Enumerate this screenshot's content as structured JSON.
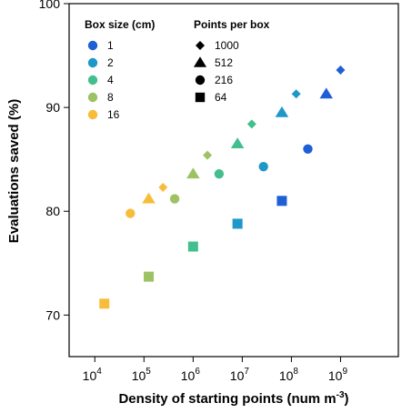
{
  "chart_data": {
    "type": "scatter",
    "xlabel": "Density of starting points (num m",
    "xlabel_superscript": "-3",
    "xlabel_suffix": ")",
    "ylabel": "Evaluations saved (%)",
    "x_scale": "log10",
    "xlim": [
      3000,
      15000000000
    ],
    "ylim": [
      66,
      100
    ],
    "x_ticks": [
      {
        "value": 10000,
        "base": "10",
        "exp": "4"
      },
      {
        "value": 100000,
        "base": "10",
        "exp": "5"
      },
      {
        "value": 1000000,
        "base": "10",
        "exp": "6"
      },
      {
        "value": 10000000,
        "base": "10",
        "exp": "7"
      },
      {
        "value": 100000000,
        "base": "10",
        "exp": "8"
      },
      {
        "value": 1000000000,
        "base": "10",
        "exp": "9"
      }
    ],
    "y_ticks": [
      70,
      80,
      90,
      100
    ],
    "grid": false,
    "legend_placement": "top-left",
    "legend_color": {
      "title": "Box size (cm)",
      "items": [
        {
          "label": "1",
          "color": "#1f5fd6"
        },
        {
          "label": "2",
          "color": "#1e97c9"
        },
        {
          "label": "4",
          "color": "#43bf8f"
        },
        {
          "label": "8",
          "color": "#9dc264"
        },
        {
          "label": "16",
          "color": "#f7bd3a"
        }
      ]
    },
    "legend_shape": {
      "title": "Points per box",
      "items": [
        {
          "label": "1000",
          "shape": "diamond"
        },
        {
          "label": "512",
          "shape": "triangle"
        },
        {
          "label": "216",
          "shape": "circle"
        },
        {
          "label": "64",
          "shape": "square"
        }
      ]
    },
    "points": [
      {
        "x": 1000000000,
        "y": 93.6,
        "box_size": "1",
        "points_per_box": "1000"
      },
      {
        "x": 512000000,
        "y": 91.3,
        "box_size": "1",
        "points_per_box": "512"
      },
      {
        "x": 216000000,
        "y": 86.0,
        "box_size": "1",
        "points_per_box": "216"
      },
      {
        "x": 64000000,
        "y": 81.0,
        "box_size": "1",
        "points_per_box": "64"
      },
      {
        "x": 125000000,
        "y": 91.3,
        "box_size": "2",
        "points_per_box": "1000"
      },
      {
        "x": 64000000,
        "y": 89.5,
        "box_size": "2",
        "points_per_box": "512"
      },
      {
        "x": 27000000,
        "y": 84.3,
        "box_size": "2",
        "points_per_box": "216"
      },
      {
        "x": 8000000,
        "y": 78.8,
        "box_size": "2",
        "points_per_box": "64"
      },
      {
        "x": 15625000,
        "y": 88.4,
        "box_size": "4",
        "points_per_box": "1000"
      },
      {
        "x": 8000000,
        "y": 86.5,
        "box_size": "4",
        "points_per_box": "512"
      },
      {
        "x": 3375000,
        "y": 83.6,
        "box_size": "4",
        "points_per_box": "216"
      },
      {
        "x": 1000000,
        "y": 76.6,
        "box_size": "4",
        "points_per_box": "64"
      },
      {
        "x": 1953125,
        "y": 85.4,
        "box_size": "8",
        "points_per_box": "1000"
      },
      {
        "x": 1000000,
        "y": 83.6,
        "box_size": "8",
        "points_per_box": "512"
      },
      {
        "x": 421875,
        "y": 81.2,
        "box_size": "8",
        "points_per_box": "216"
      },
      {
        "x": 125000,
        "y": 73.7,
        "box_size": "8",
        "points_per_box": "64"
      },
      {
        "x": 244141,
        "y": 82.3,
        "box_size": "16",
        "points_per_box": "1000"
      },
      {
        "x": 125000,
        "y": 81.2,
        "box_size": "16",
        "points_per_box": "512"
      },
      {
        "x": 52734,
        "y": 79.8,
        "box_size": "16",
        "points_per_box": "216"
      },
      {
        "x": 15625,
        "y": 71.1,
        "box_size": "16",
        "points_per_box": "64"
      }
    ]
  }
}
